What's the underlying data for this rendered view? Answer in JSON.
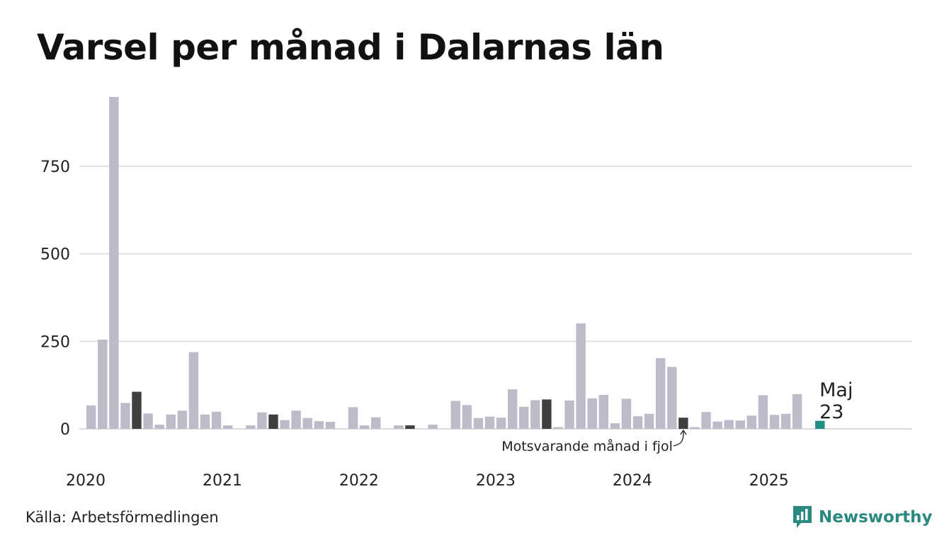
{
  "source": "Källa: Arbetsförmedlingen",
  "brand": {
    "name": "Newsworthy",
    "color": "#2a8a80",
    "icon": "newsworthy-logo-icon"
  },
  "colors": {
    "bar": "#bdbbc9",
    "same_month_previous_years": "#3f3f3f",
    "latest": "#1f8f83"
  },
  "chart_data": {
    "type": "bar",
    "title": "Varsel per månad i Dalarnas län",
    "xlabel": "",
    "ylabel": "",
    "ylim": [
      0,
      950
    ],
    "yticks": [
      0,
      250,
      500,
      750
    ],
    "grid": true,
    "x_start": "2020-01",
    "x_end": "2025-12",
    "x_tick_labels": [
      "2020",
      "2021",
      "2022",
      "2023",
      "2024",
      "2025"
    ],
    "months": [
      "2020-01",
      "2020-02",
      "2020-03",
      "2020-04",
      "2020-05",
      "2020-06",
      "2020-07",
      "2020-08",
      "2020-09",
      "2020-10",
      "2020-11",
      "2020-12",
      "2021-01",
      "2021-02",
      "2021-03",
      "2021-04",
      "2021-05",
      "2021-06",
      "2021-07",
      "2021-08",
      "2021-09",
      "2021-10",
      "2021-11",
      "2021-12",
      "2022-01",
      "2022-02",
      "2022-03",
      "2022-04",
      "2022-05",
      "2022-06",
      "2022-07",
      "2022-08",
      "2022-09",
      "2022-10",
      "2022-11",
      "2022-12",
      "2023-01",
      "2023-02",
      "2023-03",
      "2023-04",
      "2023-05",
      "2023-06",
      "2023-07",
      "2023-08",
      "2023-09",
      "2023-10",
      "2023-11",
      "2023-12",
      "2024-01",
      "2024-02",
      "2024-03",
      "2024-04",
      "2024-05",
      "2024-06",
      "2024-07",
      "2024-08",
      "2024-09",
      "2024-10",
      "2024-11",
      "2024-12",
      "2025-01",
      "2025-02",
      "2025-03",
      "2025-04",
      "2025-05"
    ],
    "values": [
      67,
      255,
      948,
      74,
      106,
      44,
      12,
      41,
      52,
      219,
      41,
      49,
      10,
      0,
      10,
      47,
      41,
      25,
      52,
      31,
      22,
      20,
      0,
      62,
      10,
      33,
      0,
      10,
      10,
      0,
      12,
      0,
      80,
      68,
      31,
      35,
      32,
      113,
      63,
      82,
      84,
      5,
      81,
      301,
      87,
      97,
      16,
      86,
      36,
      43,
      202,
      177,
      32,
      5,
      48,
      21,
      25,
      24,
      38,
      96,
      40,
      43,
      99,
      0,
      23
    ],
    "highlight_same_month_indices": [
      4,
      16,
      28,
      40,
      52
    ],
    "latest": {
      "month_label": "Maj",
      "value_label": "23"
    },
    "annotation": "Motsvarande månad i fjol"
  }
}
